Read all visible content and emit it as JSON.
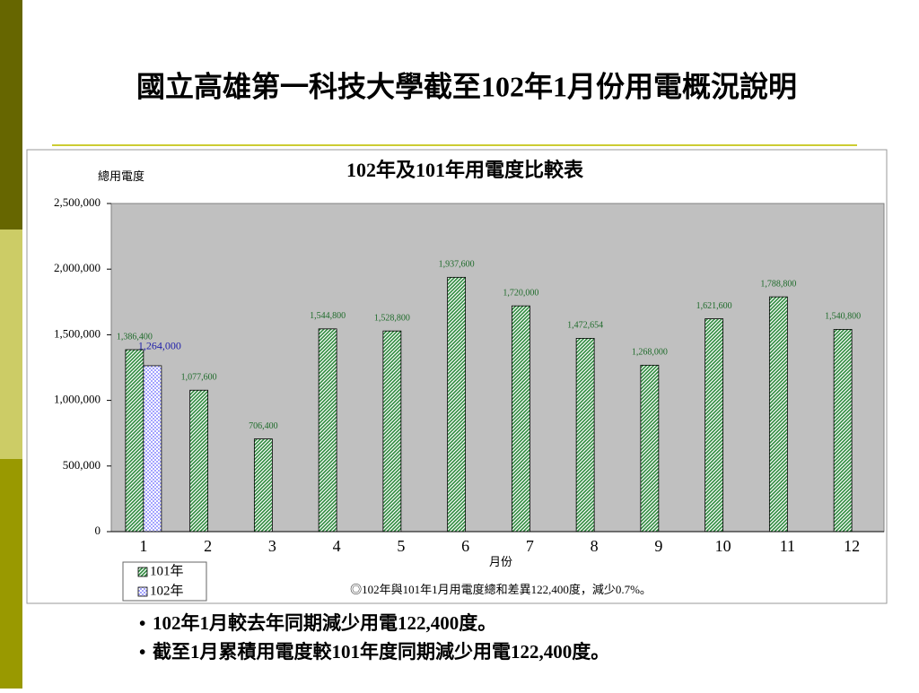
{
  "slide_title": "國立高雄第一科技大學截至102年1月份用電概況說明",
  "bullets": [
    "102年1月較去年同期減少用電122,400度。",
    "截至1月累積用電度較101年度同期減少用電122,400度。"
  ],
  "chart_data": {
    "type": "bar",
    "title": "102年及101年用電度比較表",
    "y_label": "總用電度",
    "x_label": "月份",
    "annotation": "◎102年與101年1月用電度總和差異122,400度，減少0.7%。",
    "categories": [
      "1",
      "2",
      "3",
      "4",
      "5",
      "6",
      "7",
      "8",
      "9",
      "10",
      "11",
      "12"
    ],
    "series": [
      {
        "name": "101年",
        "color": "#2e8b3e",
        "values": [
          1386400,
          1077600,
          706400,
          1544800,
          1528800,
          1937600,
          1720000,
          1472654,
          1268000,
          1621600,
          1788800,
          1540800
        ],
        "value_labels": [
          "1,386,400",
          "1,077,600",
          "706,400",
          "1,544,800",
          "1,528,800",
          "1,937,600",
          "1,720,000",
          "1,472,654",
          "1,268,000",
          "1,621,600",
          "1,788,800",
          "1,540,800"
        ]
      },
      {
        "name": "102年",
        "color": "#6666ff",
        "values": [
          1264000,
          null,
          null,
          null,
          null,
          null,
          null,
          null,
          null,
          null,
          null,
          null
        ],
        "value_labels": [
          "1,264,000",
          null,
          null,
          null,
          null,
          null,
          null,
          null,
          null,
          null,
          null,
          null
        ]
      }
    ],
    "ylim": [
      0,
      2500000
    ],
    "yticks": [
      0,
      {
        "value": 500000,
        "label": "500,000"
      },
      {
        "value": 1000000,
        "label": "1,000,000"
      },
      {
        "value": 1500000,
        "label": "1,500,000"
      },
      {
        "value": 2000000,
        "label": "2,000,000"
      },
      {
        "value": 2500000,
        "label": "2,500,000"
      }
    ],
    "legend": "bottom-left"
  }
}
